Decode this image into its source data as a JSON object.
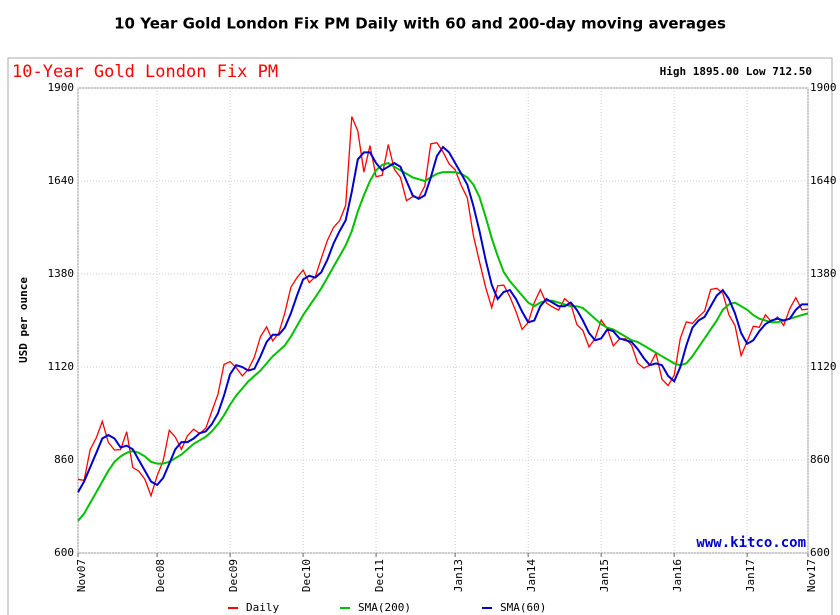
{
  "chart_data": {
    "type": "line",
    "title": "10 Year Gold London Fix PM Daily with 60 and 200-day moving averages",
    "subtitle": "10-Year Gold London Fix PM",
    "annotation": "High 1895.00 Low 712.50",
    "watermark": "www.kitco.com",
    "y_label": "USD per ounce",
    "x": [
      "2007-11",
      "2007-12",
      "2008-01",
      "2008-02",
      "2008-03",
      "2008-04",
      "2008-05",
      "2008-06",
      "2008-07",
      "2008-08",
      "2008-09",
      "2008-10",
      "2008-11",
      "2008-12",
      "2009-01",
      "2009-02",
      "2009-03",
      "2009-04",
      "2009-05",
      "2009-06",
      "2009-07",
      "2009-08",
      "2009-09",
      "2009-10",
      "2009-11",
      "2009-12",
      "2010-01",
      "2010-02",
      "2010-03",
      "2010-04",
      "2010-05",
      "2010-06",
      "2010-07",
      "2010-08",
      "2010-09",
      "2010-10",
      "2010-11",
      "2010-12",
      "2011-01",
      "2011-02",
      "2011-03",
      "2011-04",
      "2011-05",
      "2011-06",
      "2011-07",
      "2011-08",
      "2011-09",
      "2011-10",
      "2011-11",
      "2011-12",
      "2012-01",
      "2012-02",
      "2012-03",
      "2012-04",
      "2012-05",
      "2012-06",
      "2012-07",
      "2012-08",
      "2012-09",
      "2012-10",
      "2012-11",
      "2012-12",
      "2013-01",
      "2013-02",
      "2013-03",
      "2013-04",
      "2013-05",
      "2013-06",
      "2013-07",
      "2013-08",
      "2013-09",
      "2013-10",
      "2013-11",
      "2013-12",
      "2014-01",
      "2014-02",
      "2014-03",
      "2014-04",
      "2014-05",
      "2014-06",
      "2014-07",
      "2014-08",
      "2014-09",
      "2014-10",
      "2014-11",
      "2014-12",
      "2015-01",
      "2015-02",
      "2015-03",
      "2015-04",
      "2015-05",
      "2015-06",
      "2015-07",
      "2015-08",
      "2015-09",
      "2015-10",
      "2015-11",
      "2015-12",
      "2016-01",
      "2016-02",
      "2016-03",
      "2016-04",
      "2016-05",
      "2016-06",
      "2016-07",
      "2016-08",
      "2016-09",
      "2016-10",
      "2016-11",
      "2016-12",
      "2017-01",
      "2017-02",
      "2017-03",
      "2017-04",
      "2017-05",
      "2017-06",
      "2017-07",
      "2017-08",
      "2017-09",
      "2017-10",
      "2017-11"
    ],
    "series": [
      {
        "name": "Daily",
        "color": "#ff0000",
        "values": [
          806,
          803,
          889,
          922,
          968,
          909,
          888,
          889,
          939,
          839,
          829,
          806,
          760,
          816,
          858,
          943,
          924,
          890,
          928,
          946,
          934,
          949,
          996,
          1043,
          1127,
          1135,
          1118,
          1095,
          1113,
          1148,
          1205,
          1232,
          1193,
          1215,
          1271,
          1343,
          1370,
          1391,
          1356,
          1372,
          1424,
          1474,
          1510,
          1529,
          1572,
          1820,
          1780,
          1665,
          1739,
          1652,
          1656,
          1742,
          1673,
          1650,
          1585,
          1596,
          1594,
          1626,
          1744,
          1747,
          1721,
          1688,
          1671,
          1627,
          1593,
          1487,
          1414,
          1343,
          1286,
          1347,
          1349,
          1316,
          1275,
          1225,
          1244,
          1300,
          1336,
          1299,
          1288,
          1279,
          1311,
          1296,
          1239,
          1222,
          1176,
          1200,
          1251,
          1227,
          1179,
          1198,
          1199,
          1181,
          1131,
          1117,
          1125,
          1159,
          1086,
          1068,
          1097,
          1200,
          1246,
          1242,
          1260,
          1276,
          1337,
          1340,
          1326,
          1266,
          1236,
          1152,
          1192,
          1234,
          1231,
          1266,
          1246,
          1260,
          1236,
          1283,
          1314,
          1280,
          1282
        ]
      },
      {
        "name": "SMA(200)",
        "color": "#00c000",
        "values": [
          690,
          710,
          740,
          770,
          800,
          830,
          855,
          870,
          880,
          885,
          880,
          870,
          855,
          850,
          850,
          855,
          865,
          875,
          890,
          905,
          915,
          925,
          940,
          960,
          985,
          1015,
          1040,
          1060,
          1080,
          1095,
          1110,
          1130,
          1150,
          1165,
          1180,
          1205,
          1235,
          1265,
          1290,
          1315,
          1340,
          1370,
          1400,
          1430,
          1460,
          1500,
          1555,
          1600,
          1640,
          1670,
          1685,
          1690,
          1680,
          1670,
          1660,
          1650,
          1645,
          1640,
          1650,
          1660,
          1665,
          1665,
          1665,
          1660,
          1650,
          1630,
          1595,
          1540,
          1480,
          1430,
          1385,
          1360,
          1340,
          1320,
          1300,
          1290,
          1300,
          1305,
          1305,
          1300,
          1295,
          1290,
          1290,
          1285,
          1270,
          1255,
          1240,
          1230,
          1225,
          1215,
          1205,
          1195,
          1190,
          1180,
          1170,
          1160,
          1150,
          1140,
          1130,
          1125,
          1130,
          1150,
          1175,
          1200,
          1225,
          1250,
          1280,
          1295,
          1300,
          1290,
          1280,
          1265,
          1255,
          1250,
          1245,
          1245,
          1250,
          1255,
          1260,
          1265,
          1270
        ]
      },
      {
        "name": "SMA(60)",
        "color": "#0000cc",
        "values": [
          770,
          800,
          840,
          880,
          920,
          930,
          920,
          895,
          900,
          890,
          860,
          830,
          800,
          790,
          810,
          850,
          890,
          910,
          910,
          920,
          935,
          940,
          960,
          990,
          1040,
          1100,
          1125,
          1120,
          1110,
          1115,
          1150,
          1190,
          1210,
          1210,
          1230,
          1270,
          1320,
          1365,
          1375,
          1370,
          1385,
          1420,
          1465,
          1500,
          1530,
          1610,
          1700,
          1720,
          1720,
          1690,
          1670,
          1680,
          1690,
          1680,
          1640,
          1600,
          1590,
          1600,
          1650,
          1710,
          1735,
          1720,
          1690,
          1660,
          1630,
          1570,
          1500,
          1420,
          1350,
          1310,
          1330,
          1335,
          1310,
          1275,
          1245,
          1250,
          1290,
          1310,
          1300,
          1290,
          1290,
          1300,
          1280,
          1250,
          1215,
          1195,
          1200,
          1225,
          1220,
          1200,
          1195,
          1190,
          1170,
          1145,
          1125,
          1130,
          1125,
          1095,
          1080,
          1120,
          1180,
          1230,
          1250,
          1260,
          1290,
          1320,
          1335,
          1310,
          1270,
          1215,
          1185,
          1195,
          1220,
          1240,
          1250,
          1255,
          1250,
          1255,
          1280,
          1295,
          1295
        ]
      }
    ],
    "xlim": [
      "2007-11",
      "2017-11"
    ],
    "xticks": [
      {
        "value": "2007-11",
        "label": "Nov07"
      },
      {
        "value": "2008-12",
        "label": "Dec08"
      },
      {
        "value": "2009-12",
        "label": "Dec09"
      },
      {
        "value": "2010-12",
        "label": "Dec10"
      },
      {
        "value": "2011-12",
        "label": "Dec11"
      },
      {
        "value": "2013-01",
        "label": "Jan13"
      },
      {
        "value": "2014-01",
        "label": "Jan14"
      },
      {
        "value": "2015-01",
        "label": "Jan15"
      },
      {
        "value": "2016-01",
        "label": "Jan16"
      },
      {
        "value": "2017-01",
        "label": "Jan17"
      },
      {
        "value": "2017-11",
        "label": "Nov17"
      }
    ],
    "ylim": [
      600,
      1900
    ],
    "yticks": [
      600,
      860,
      1120,
      1380,
      1640,
      1900
    ],
    "grid": true
  }
}
